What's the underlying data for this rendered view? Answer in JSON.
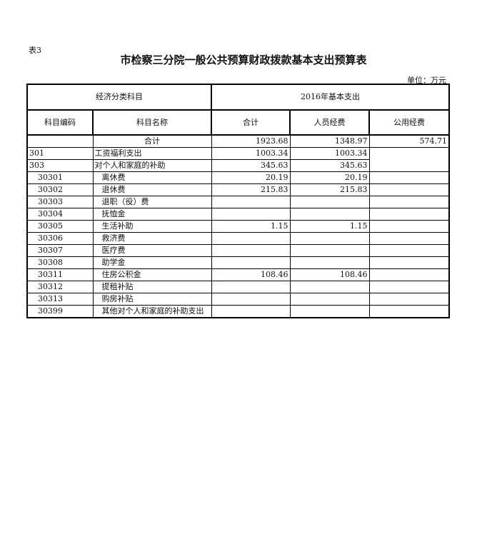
{
  "table_label": "表3",
  "title": "市检察三分院一般公共预算财政拨款基本支出预算表",
  "unit": "单位：万元",
  "header": {
    "group_left": "经济分类科目",
    "group_right": "2016年基本支出",
    "code": "科目编码",
    "name": "科目名称",
    "total": "合计",
    "personnel": "人员经费",
    "public": "公用经费"
  },
  "total_row": {
    "name": "合计",
    "total": "1923.68",
    "personnel": "1348.97",
    "public": "574.71"
  },
  "rows": [
    {
      "code": "301",
      "name": "工资福利支出",
      "total": "1003.34",
      "personnel": "1003.34",
      "level": 1
    },
    {
      "code": "303",
      "name": "对个人和家庭的补助",
      "total": "345.63",
      "personnel": "345.63",
      "level": 1
    },
    {
      "code": "30301",
      "name": "离休费",
      "total": "20.19",
      "personnel": "20.19",
      "level": 2
    },
    {
      "code": "30302",
      "name": "退休费",
      "total": "215.83",
      "personnel": "215.83",
      "level": 2
    },
    {
      "code": "30303",
      "name": "退职（役）费",
      "total": "",
      "personnel": "",
      "level": 2
    },
    {
      "code": "30304",
      "name": "抚恤金",
      "total": "",
      "personnel": "",
      "level": 2
    },
    {
      "code": "30305",
      "name": "生活补助",
      "total": "1.15",
      "personnel": "1.15",
      "level": 2
    },
    {
      "code": "30306",
      "name": "救济费",
      "total": "",
      "personnel": "",
      "level": 2
    },
    {
      "code": "30307",
      "name": "医疗费",
      "total": "",
      "personnel": "",
      "level": 2
    },
    {
      "code": "30308",
      "name": "助学金",
      "total": "",
      "personnel": "",
      "level": 2
    },
    {
      "code": "30311",
      "name": "住房公积金",
      "total": "108.46",
      "personnel": "108.46",
      "level": 2
    },
    {
      "code": "30312",
      "name": "提租补贴",
      "total": "",
      "personnel": "",
      "level": 2
    },
    {
      "code": "30313",
      "name": "购房补贴",
      "total": "",
      "personnel": "",
      "level": 2
    },
    {
      "code": "30399",
      "name": "其他对个人和家庭的补助支出",
      "total": "",
      "personnel": "",
      "level": 2
    }
  ]
}
